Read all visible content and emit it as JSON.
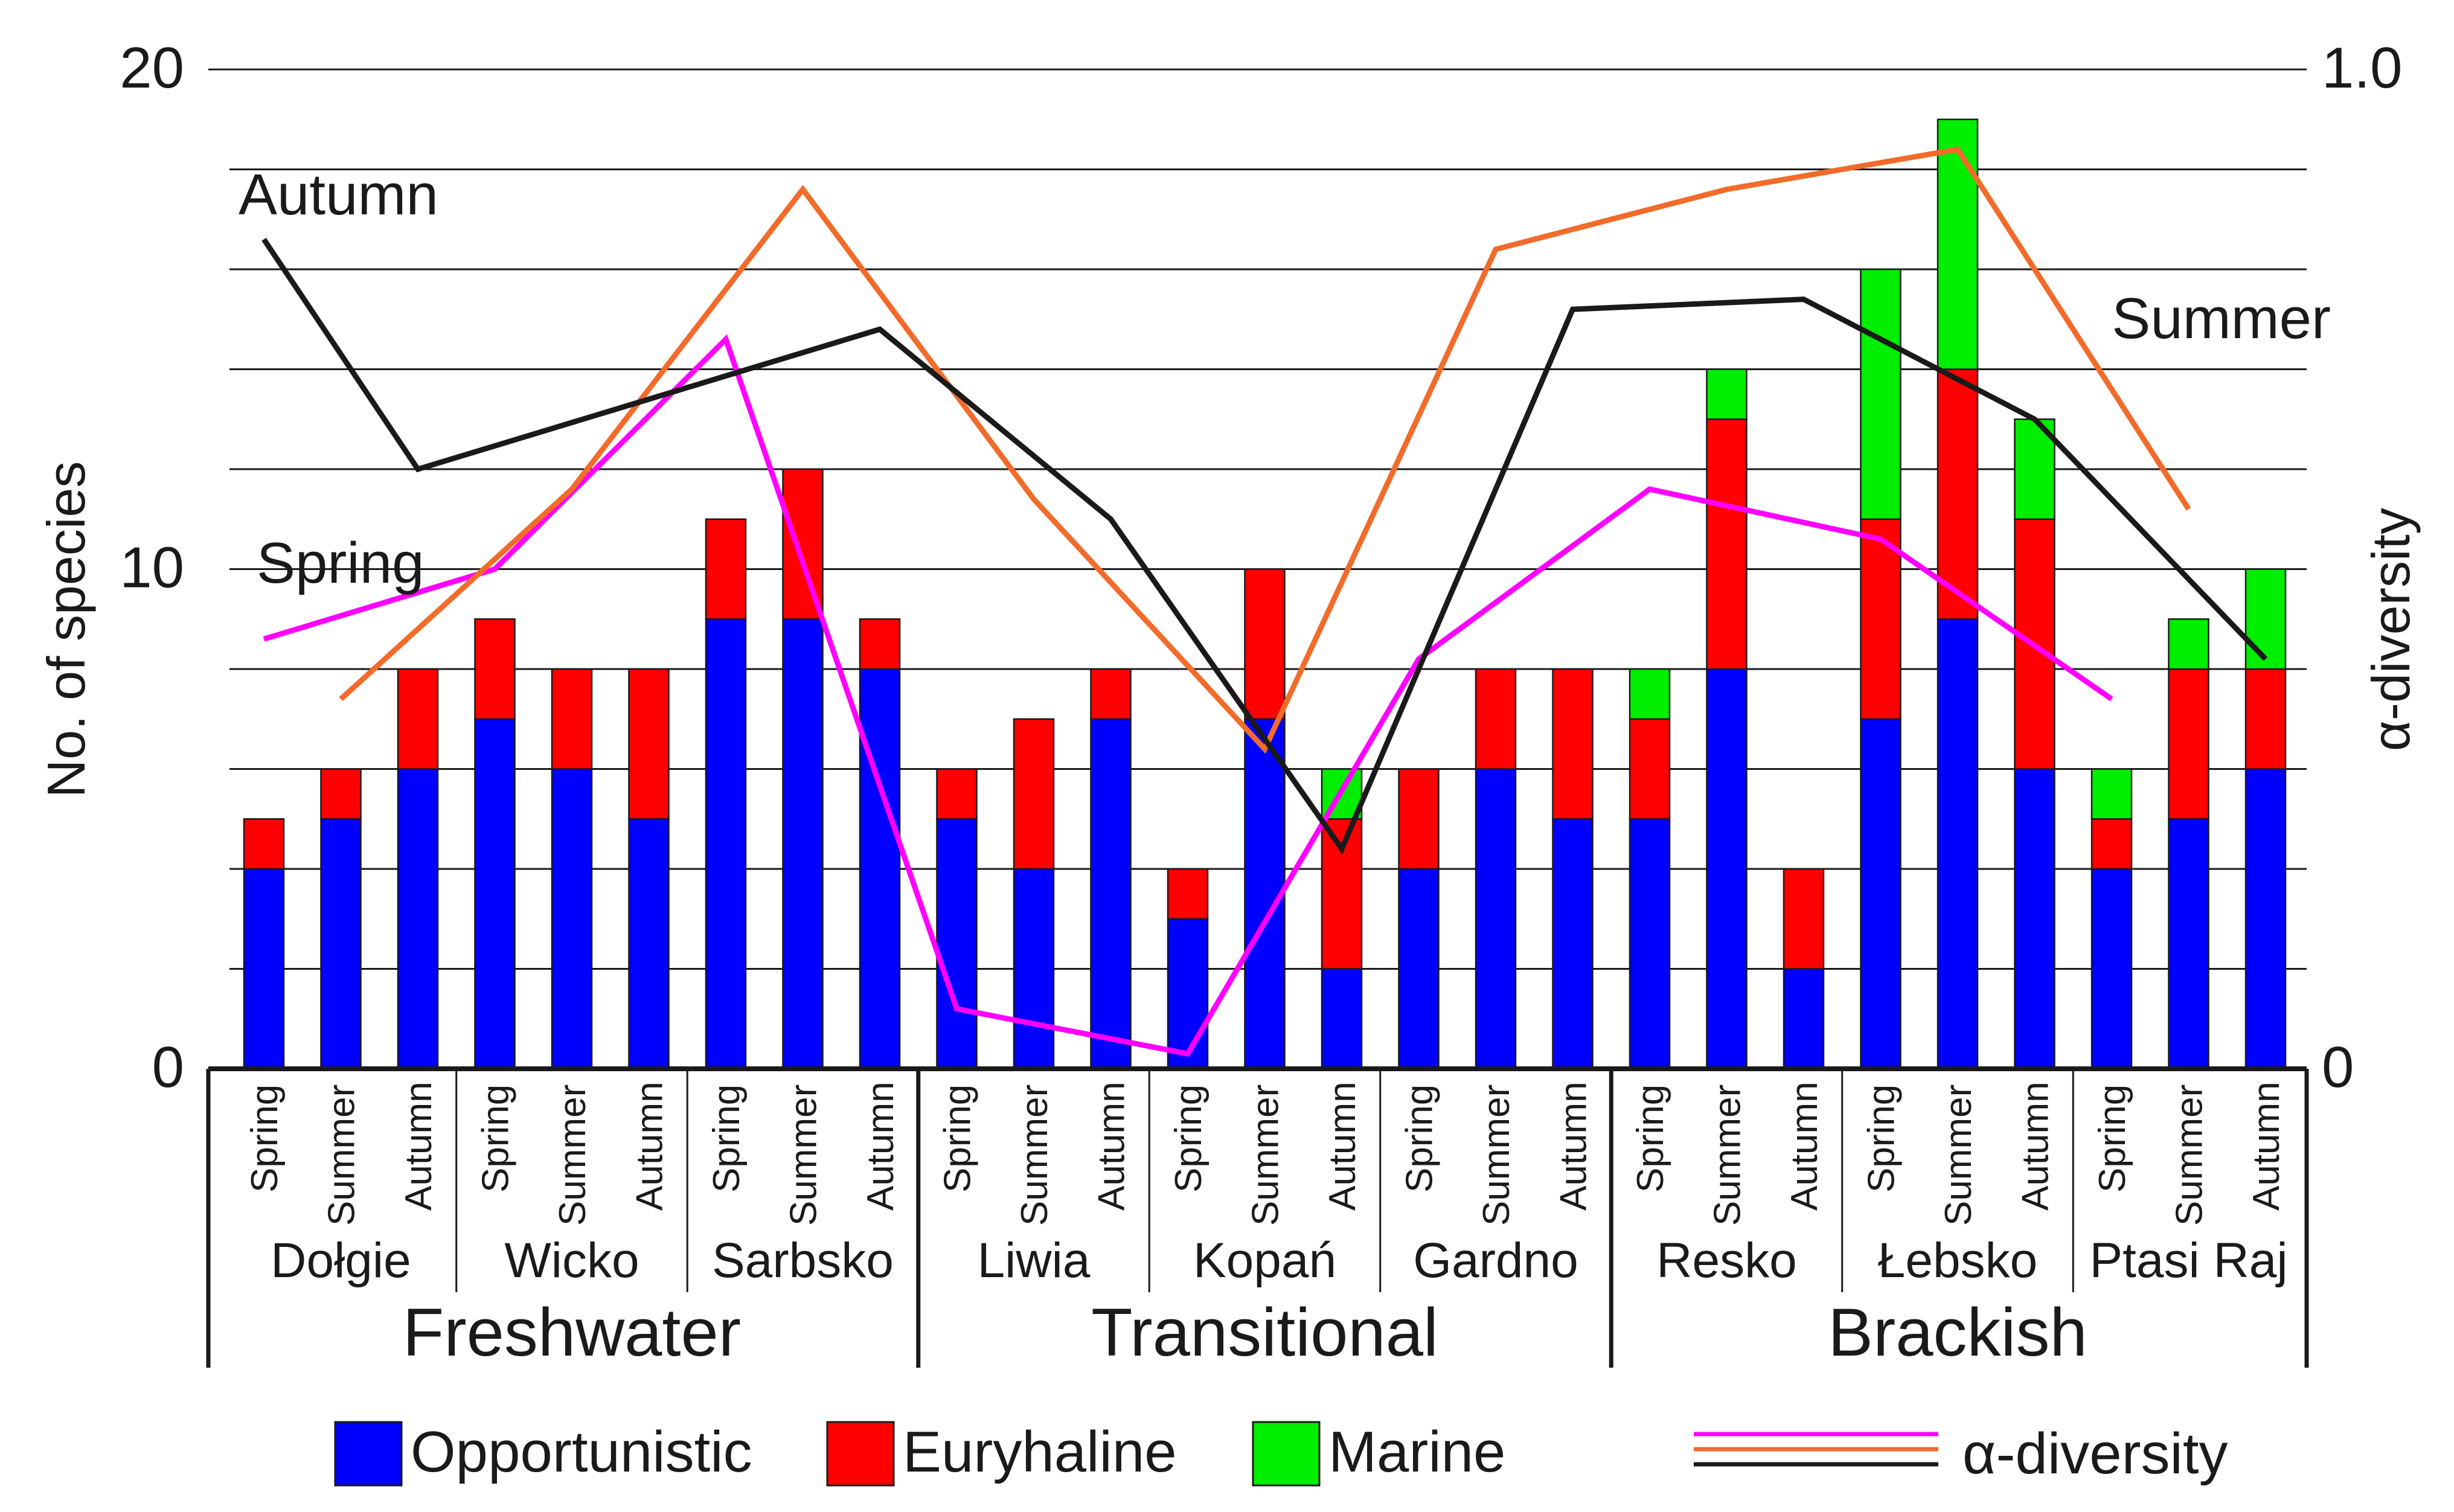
{
  "chart_data": {
    "type": "bar",
    "stacked": true,
    "secondary_axis_type": "line",
    "ylabel": "No. of species",
    "y2label": "α-diversity",
    "ylim": [
      0,
      20
    ],
    "y2lim": [
      0,
      1.0
    ],
    "yticks": [
      "0",
      "10",
      "20"
    ],
    "y2ticks": [
      "0",
      "1.0"
    ],
    "grid": true,
    "seasons": [
      "Spring",
      "Summer",
      "Autumn"
    ],
    "lakes": [
      "Dołgie",
      "Wicko",
      "Sarbsko",
      "Liwia",
      "Kopań",
      "Gardno",
      "Resko",
      "Łebsko",
      "Ptasi Raj"
    ],
    "groups": [
      {
        "label": "Freshwater",
        "lakes": [
          0,
          1,
          2
        ]
      },
      {
        "label": "Transitional",
        "lakes": [
          3,
          4,
          5
        ]
      },
      {
        "label": "Brackish",
        "lakes": [
          6,
          7,
          8
        ]
      }
    ],
    "series": [
      {
        "name": "Opportunistic",
        "color": "#0000ff",
        "values": [
          4,
          5,
          6,
          7,
          6,
          5,
          9,
          9,
          8,
          5,
          4,
          7,
          3,
          7,
          2,
          4,
          6,
          5,
          5,
          8,
          2,
          7,
          9,
          6,
          4,
          5,
          6
        ]
      },
      {
        "name": "Euryhaline",
        "color": "#ff0000",
        "values": [
          1,
          1,
          2,
          2,
          2,
          3,
          2,
          3,
          1,
          1,
          3,
          1,
          1,
          3,
          3,
          2,
          2,
          3,
          2,
          5,
          2,
          4,
          5,
          5,
          1,
          3,
          2
        ]
      },
      {
        "name": "Marine",
        "color": "#00ee00",
        "values": [
          0,
          0,
          0,
          0,
          0,
          0,
          0,
          0,
          0,
          0,
          0,
          0,
          0,
          0,
          1,
          0,
          0,
          0,
          1,
          1,
          0,
          5,
          5,
          2,
          1,
          1,
          2
        ]
      }
    ],
    "lines": [
      {
        "name": "Spring",
        "label": "Spring",
        "color": "#ff00ff",
        "points": [
          [
            0,
            0.43
          ],
          [
            3,
            0.5
          ],
          [
            6,
            0.73
          ],
          [
            9,
            0.06
          ],
          [
            12,
            0.015
          ],
          [
            15,
            0.41
          ],
          [
            18,
            0.58
          ],
          [
            21,
            0.53
          ],
          [
            24,
            0.37
          ]
        ]
      },
      {
        "name": "Summer",
        "label": "Summer",
        "color": "#f26b2a",
        "points": [
          [
            1,
            0.37
          ],
          [
            4,
            0.58
          ],
          [
            7,
            0.88
          ],
          [
            10,
            0.57
          ],
          [
            13,
            0.32
          ],
          [
            16,
            0.82
          ],
          [
            19,
            0.88
          ],
          [
            22,
            0.92
          ],
          [
            25,
            0.56
          ]
        ]
      },
      {
        "name": "Autumn",
        "label": "Autumn",
        "color": "#1a1a1a",
        "points": [
          [
            0,
            0.83
          ],
          [
            2,
            0.6
          ],
          [
            8,
            0.74
          ],
          [
            11,
            0.55
          ],
          [
            14,
            0.22
          ],
          [
            17,
            0.76
          ],
          [
            20,
            0.77
          ],
          [
            23,
            0.65
          ],
          [
            26,
            0.41
          ]
        ]
      }
    ],
    "legend": {
      "bars": [
        "Opportunistic",
        "Euryhaline",
        "Marine"
      ],
      "lines_label": "α-diversity"
    }
  }
}
